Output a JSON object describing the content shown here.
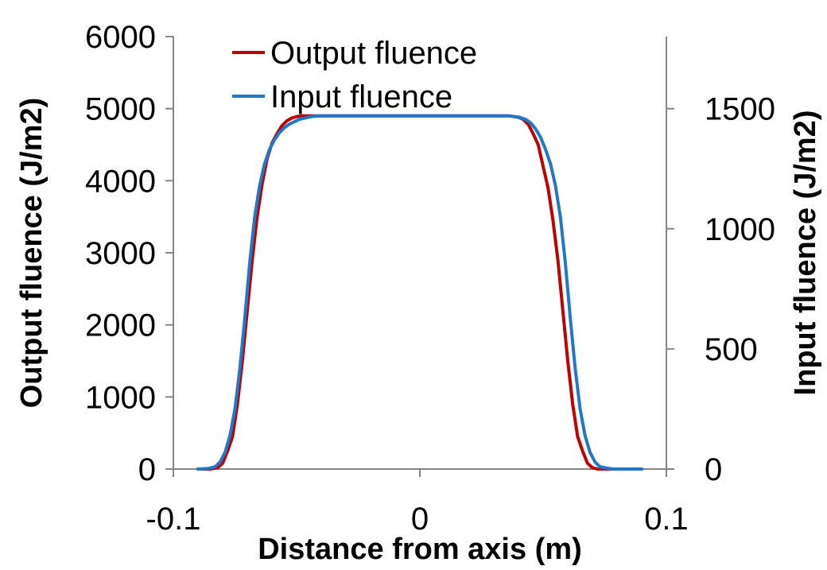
{
  "chart_data": {
    "type": "line",
    "title": "",
    "xlabel": "Distance from axis (m)",
    "ylabel": "Output fluence (J/m2)",
    "y2label": "Input fluence (J/m2)",
    "xlim": [
      -0.1,
      0.1
    ],
    "ylim": [
      0,
      6000
    ],
    "y2lim": [
      0,
      1800
    ],
    "x_ticks": [
      -0.1,
      0,
      0.1
    ],
    "x_tick_labels": [
      "-0.1",
      "0",
      "0.1"
    ],
    "y_ticks": [
      0,
      1000,
      2000,
      3000,
      4000,
      5000,
      6000
    ],
    "y_tick_labels": [
      "0",
      "1000",
      "2000",
      "3000",
      "4000",
      "5000",
      "6000"
    ],
    "y2_ticks": [
      0,
      500,
      1000,
      1500
    ],
    "y2_tick_labels": [
      "0",
      "500",
      "1000",
      "1500"
    ],
    "grid": false,
    "legend_position": "top-left",
    "series": [
      {
        "name": "Output fluence",
        "axis": "left",
        "color": "#C00000",
        "x": [
          -0.09,
          -0.085,
          -0.082,
          -0.08,
          -0.078,
          -0.076,
          -0.074,
          -0.072,
          -0.07,
          -0.068,
          -0.066,
          -0.064,
          -0.062,
          -0.06,
          -0.058,
          -0.056,
          -0.054,
          -0.052,
          -0.05,
          -0.048,
          -0.046,
          -0.044,
          -0.042,
          -0.04,
          -0.036,
          -0.03,
          -0.02,
          -0.01,
          0,
          0.01,
          0.02,
          0.03,
          0.036,
          0.04,
          0.042,
          0.044,
          0.046,
          0.048,
          0.05,
          0.052,
          0.054,
          0.056,
          0.058,
          0.06,
          0.062,
          0.064,
          0.066,
          0.068,
          0.07,
          0.072,
          0.074,
          0.076,
          0.078,
          0.08,
          0.082,
          0.085,
          0.09
        ],
        "values": [
          0,
          0,
          20,
          80,
          250,
          450,
          900,
          1500,
          2200,
          2900,
          3500,
          3950,
          4300,
          4520,
          4650,
          4760,
          4830,
          4870,
          4890,
          4900,
          4900,
          4900,
          4900,
          4900,
          4900,
          4900,
          4900,
          4900,
          4900,
          4900,
          4900,
          4900,
          4900,
          4880,
          4850,
          4780,
          4650,
          4500,
          4200,
          3900,
          3450,
          2900,
          2200,
          1500,
          900,
          450,
          250,
          80,
          20,
          0,
          0,
          0,
          0,
          0,
          0,
          0,
          0
        ]
      },
      {
        "name": "Input fluence",
        "axis": "right",
        "color": "#1F78C8",
        "x": [
          -0.09,
          -0.086,
          -0.083,
          -0.081,
          -0.079,
          -0.077,
          -0.075,
          -0.073,
          -0.071,
          -0.069,
          -0.067,
          -0.065,
          -0.063,
          -0.061,
          -0.059,
          -0.057,
          -0.055,
          -0.053,
          -0.051,
          -0.049,
          -0.047,
          -0.045,
          -0.043,
          -0.04,
          -0.036,
          -0.03,
          -0.02,
          -0.01,
          0,
          0.01,
          0.02,
          0.03,
          0.036,
          0.04,
          0.043,
          0.045,
          0.047,
          0.049,
          0.051,
          0.053,
          0.055,
          0.057,
          0.059,
          0.061,
          0.063,
          0.065,
          0.067,
          0.069,
          0.071,
          0.073,
          0.075,
          0.077,
          0.079,
          0.081,
          0.083,
          0.086,
          0.09
        ],
        "values": [
          0,
          2,
          10,
          30,
          70,
          140,
          250,
          420,
          630,
          860,
          1050,
          1180,
          1270,
          1330,
          1370,
          1400,
          1420,
          1435,
          1445,
          1455,
          1460,
          1465,
          1468,
          1470,
          1470,
          1470,
          1470,
          1470,
          1470,
          1470,
          1470,
          1470,
          1470,
          1465,
          1455,
          1440,
          1415,
          1380,
          1330,
          1270,
          1180,
          1050,
          860,
          630,
          420,
          250,
          140,
          70,
          30,
          10,
          5,
          2,
          0,
          0,
          0,
          0,
          0
        ]
      }
    ]
  }
}
